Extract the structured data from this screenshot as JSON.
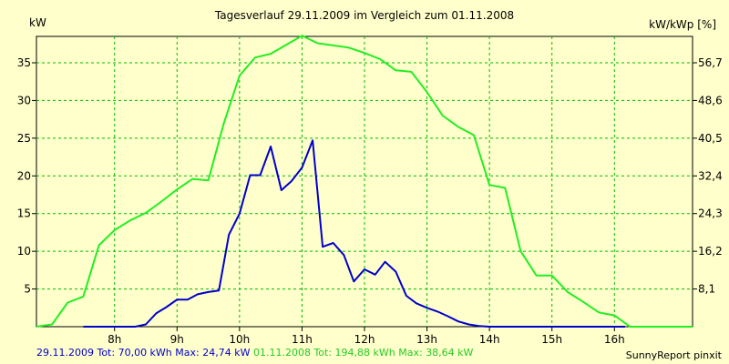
{
  "chart_data": {
    "type": "line",
    "title": "Tagesverlauf 29.11.2009 im Vergleich zum 01.11.2008",
    "ylabel_left": "kW",
    "ylabel_right": "kW/kWp [%]",
    "x_ticks": [
      "8h",
      "9h",
      "10h",
      "11h",
      "12h",
      "13h",
      "14h",
      "15h",
      "16h"
    ],
    "x_tick_values": [
      8,
      9,
      10,
      11,
      12,
      13,
      14,
      15,
      16
    ],
    "xlim": [
      6.75,
      17.25
    ],
    "y_ticks_left": [
      "5",
      "10",
      "15",
      "20",
      "25",
      "30",
      "35"
    ],
    "y_tick_values_left": [
      5,
      10,
      15,
      20,
      25,
      30,
      35
    ],
    "y_ticks_right": [
      "8,1",
      "16,2",
      "24,3",
      "32,4",
      "40,5",
      "48,6",
      "56,7"
    ],
    "ylim": [
      0,
      38.5
    ],
    "grid": true,
    "series": [
      {
        "name": "29.11.2009",
        "color": "#0000cc",
        "x": [
          7.5,
          7.67,
          7.83,
          8.0,
          8.17,
          8.33,
          8.5,
          8.67,
          8.83,
          9.0,
          9.17,
          9.33,
          9.5,
          9.67,
          9.83,
          10.0,
          10.17,
          10.33,
          10.5,
          10.67,
          10.83,
          11.0,
          11.17,
          11.33,
          11.5,
          11.67,
          11.83,
          12.0,
          12.17,
          12.33,
          12.5,
          12.67,
          12.83,
          13.0,
          13.17,
          13.33,
          13.5,
          13.67,
          13.83,
          14.0,
          14.17,
          14.33,
          14.5,
          14.67,
          14.83,
          15.0,
          15.17,
          15.33,
          15.5,
          15.67,
          15.83,
          16.0,
          16.17
        ],
        "values": [
          0,
          0,
          0,
          0,
          0,
          0,
          0.3,
          1.8,
          2.6,
          3.6,
          3.6,
          4.3,
          4.6,
          4.8,
          12.2,
          15.0,
          20.1,
          20.1,
          23.9,
          18.1,
          19.3,
          21.1,
          24.7,
          10.6,
          11.1,
          9.5,
          6.0,
          7.6,
          6.9,
          8.6,
          7.3,
          4.1,
          3.1,
          2.5,
          2.0,
          1.4,
          0.7,
          0.3,
          0.1,
          0,
          0,
          0,
          0,
          0,
          0,
          0,
          0,
          0,
          0,
          0,
          0,
          0,
          0
        ]
      },
      {
        "name": "01.11.2008",
        "color": "#22ee22",
        "x": [
          6.75,
          7.0,
          7.25,
          7.5,
          7.75,
          8.0,
          8.25,
          8.5,
          8.75,
          9.0,
          9.25,
          9.5,
          9.75,
          10.0,
          10.25,
          10.5,
          10.75,
          11.0,
          11.25,
          11.5,
          11.75,
          12.0,
          12.25,
          12.5,
          12.75,
          13.0,
          13.25,
          13.5,
          13.75,
          14.0,
          14.25,
          14.5,
          14.75,
          15.0,
          15.25,
          15.5,
          15.75,
          16.0,
          16.25,
          16.5,
          16.75,
          17.0,
          17.25
        ],
        "values": [
          0,
          0.3,
          3.2,
          4.0,
          10.8,
          12.8,
          14.1,
          15.1,
          16.6,
          18.2,
          19.6,
          19.4,
          27.0,
          33.3,
          35.7,
          36.2,
          37.4,
          38.6,
          37.6,
          37.3,
          37.0,
          36.3,
          35.5,
          34.0,
          33.8,
          31.1,
          28.0,
          26.5,
          25.4,
          18.8,
          18.4,
          10.0,
          6.8,
          6.8,
          4.6,
          3.3,
          1.9,
          1.5,
          0,
          0,
          0,
          0,
          0
        ]
      }
    ]
  },
  "footer": {
    "series1_text": "29.11.2009 Tot: 70,00 kWh Max: 24,74 kW",
    "series2_text": "01.11.2008 Tot: 194,88 kWh Max: 38,64 kW",
    "credit": "SunnyReport pinxit"
  }
}
